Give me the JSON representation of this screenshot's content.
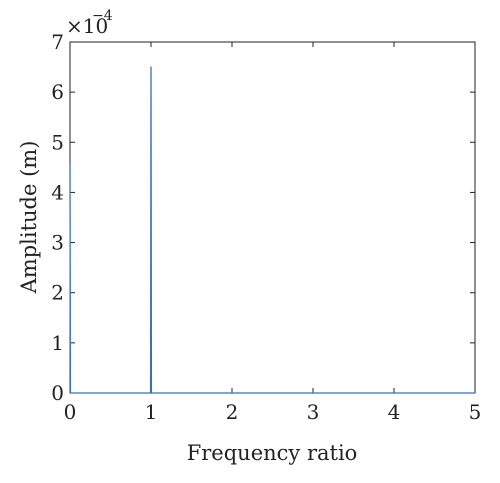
{
  "chart_data": {
    "type": "line",
    "title": "",
    "xlabel": "Frequency ratio",
    "ylabel": "Amplitude (m)",
    "xlim": [
      0,
      5
    ],
    "ylim": [
      0,
      7
    ],
    "x_ticks": [
      "0",
      "1",
      "2",
      "3",
      "4",
      "5"
    ],
    "y_ticks": [
      "0",
      "1",
      "2",
      "3",
      "4",
      "5",
      "6",
      "7"
    ],
    "y_multiplier": {
      "base": "×10",
      "exponent": "−4"
    },
    "grid": false,
    "series": [
      {
        "color": "#3a6fb5",
        "x": [
          0.0,
          0.005,
          0.01,
          0.02,
          0.98,
          0.995,
          1.0,
          1.005,
          1.02,
          2.0,
          3.0,
          4.0,
          5.0
        ],
        "y": [
          4.6,
          0.0,
          0.0,
          0.0,
          0.0,
          0.0,
          6.5,
          0.0,
          0.0,
          0.0,
          0.0,
          0.0,
          0.0
        ]
      }
    ]
  }
}
